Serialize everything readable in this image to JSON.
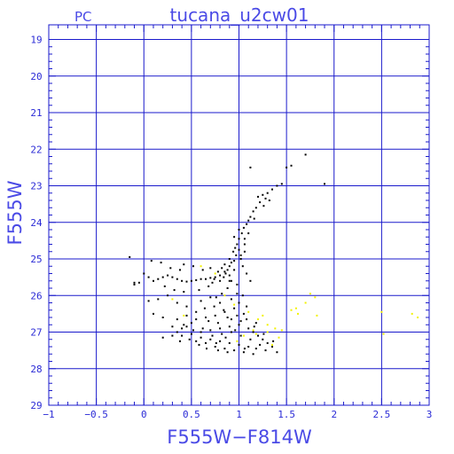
{
  "chart_data": {
    "type": "scatter",
    "title": "tucana_u2cw01",
    "corner_label": "PC",
    "xlabel": "F555W−F814W",
    "ylabel": "F555W",
    "xlim": [
      -1,
      3
    ],
    "ylim": [
      29,
      18.6
    ],
    "y_inverted": true,
    "grid": true,
    "x_major_ticks": [
      -1,
      -0.5,
      0,
      0.5,
      1,
      1.5,
      2,
      2.5,
      3
    ],
    "x_tick_labels": [
      "−1",
      "−0.5",
      "0",
      "0.5",
      "1",
      "1.5",
      "2",
      "2.5",
      "3"
    ],
    "y_major_ticks": [
      19,
      20,
      21,
      22,
      23,
      24,
      25,
      26,
      27,
      28,
      29
    ],
    "y_tick_labels": [
      "19",
      "20",
      "21",
      "22",
      "23",
      "24",
      "25",
      "26",
      "27",
      "28",
      "29"
    ],
    "colors": {
      "frame": "#1a1acc",
      "grid": "#1a1acc",
      "text": "#4a4ae6",
      "stars": "#000000",
      "highlight_stars": "#f2f200"
    },
    "series": [
      {
        "color_key": "stars",
        "points": [
          [
            1.7,
            22.15
          ],
          [
            1.55,
            22.45
          ],
          [
            1.5,
            22.5
          ],
          [
            1.12,
            22.5
          ],
          [
            1.9,
            22.95
          ],
          [
            1.45,
            22.95
          ],
          [
            1.4,
            23.0
          ],
          [
            1.35,
            23.1
          ],
          [
            1.3,
            23.2
          ],
          [
            1.25,
            23.25
          ],
          [
            1.2,
            23.3
          ],
          [
            1.28,
            23.35
          ],
          [
            1.22,
            23.45
          ],
          [
            1.18,
            23.6
          ],
          [
            1.15,
            23.7
          ],
          [
            1.12,
            23.85
          ],
          [
            1.1,
            23.95
          ],
          [
            1.08,
            24.05
          ],
          [
            1.05,
            24.15
          ],
          [
            1.03,
            24.3
          ],
          [
            1.0,
            24.45
          ],
          [
            0.98,
            24.6
          ],
          [
            1.0,
            24.75
          ],
          [
            0.97,
            24.9
          ],
          [
            0.95,
            25.05
          ],
          [
            1.02,
            24.9
          ],
          [
            1.06,
            24.6
          ],
          [
            1.1,
            24.3
          ],
          [
            0.95,
            24.4
          ],
          [
            1.0,
            24.2
          ],
          [
            0.92,
            25.1
          ],
          [
            0.9,
            25.2
          ],
          [
            0.88,
            25.3
          ],
          [
            0.86,
            25.4
          ],
          [
            0.84,
            25.5
          ],
          [
            0.8,
            25.45
          ],
          [
            0.75,
            25.5
          ],
          [
            0.7,
            25.52
          ],
          [
            0.65,
            25.55
          ],
          [
            0.6,
            25.55
          ],
          [
            0.55,
            25.58
          ],
          [
            0.5,
            25.6
          ],
          [
            0.45,
            25.62
          ],
          [
            0.4,
            25.6
          ],
          [
            0.35,
            25.55
          ],
          [
            0.3,
            25.5
          ],
          [
            0.25,
            25.45
          ],
          [
            0.2,
            25.5
          ],
          [
            0.15,
            25.55
          ],
          [
            0.1,
            25.6
          ],
          [
            0.05,
            25.5
          ],
          [
            0.0,
            25.4
          ],
          [
            -0.05,
            25.65
          ],
          [
            -0.1,
            25.7
          ],
          [
            -0.15,
            24.95
          ],
          [
            0.08,
            25.05
          ],
          [
            0.18,
            25.1
          ],
          [
            0.28,
            25.25
          ],
          [
            0.38,
            25.3
          ],
          [
            0.95,
            25.3
          ],
          [
            0.9,
            25.45
          ],
          [
            0.85,
            25.35
          ],
          [
            0.82,
            25.25
          ],
          [
            0.78,
            25.35
          ],
          [
            0.92,
            25.6
          ],
          [
            0.98,
            25.7
          ],
          [
            0.88,
            25.8
          ],
          [
            0.82,
            25.95
          ],
          [
            0.76,
            26.05
          ],
          [
            0.92,
            26.1
          ],
          [
            1.0,
            26.2
          ],
          [
            0.95,
            26.35
          ],
          [
            0.85,
            26.45
          ],
          [
            0.75,
            26.55
          ],
          [
            0.65,
            26.6
          ],
          [
            0.55,
            26.65
          ],
          [
            0.5,
            26.75
          ],
          [
            0.45,
            26.85
          ],
          [
            0.4,
            26.9
          ],
          [
            0.35,
            27.0
          ],
          [
            0.4,
            27.1
          ],
          [
            0.5,
            27.05
          ],
          [
            0.6,
            27.0
          ],
          [
            0.7,
            26.95
          ],
          [
            0.8,
            26.9
          ],
          [
            0.9,
            26.85
          ],
          [
            1.0,
            26.8
          ],
          [
            1.1,
            26.9
          ],
          [
            1.15,
            27.0
          ],
          [
            1.2,
            27.1
          ],
          [
            1.25,
            27.2
          ],
          [
            1.3,
            27.3
          ],
          [
            1.35,
            27.4
          ],
          [
            1.4,
            27.55
          ],
          [
            1.28,
            27.5
          ],
          [
            1.18,
            27.45
          ],
          [
            1.1,
            27.4
          ],
          [
            1.0,
            27.35
          ],
          [
            0.9,
            27.3
          ],
          [
            0.8,
            27.25
          ],
          [
            0.7,
            27.2
          ],
          [
            0.6,
            27.15
          ],
          [
            0.55,
            27.25
          ],
          [
            0.65,
            27.3
          ],
          [
            0.75,
            27.4
          ],
          [
            0.85,
            27.45
          ],
          [
            0.95,
            27.5
          ],
          [
            1.05,
            27.55
          ],
          [
            1.15,
            27.6
          ],
          [
            1.22,
            27.35
          ],
          [
            1.12,
            27.2
          ],
          [
            1.02,
            27.1
          ],
          [
            0.92,
            27.0
          ],
          [
            0.82,
            27.05
          ],
          [
            0.72,
            27.1
          ],
          [
            0.62,
            26.9
          ],
          [
            0.52,
            26.95
          ],
          [
            0.42,
            26.8
          ],
          [
            0.68,
            26.7
          ],
          [
            0.78,
            26.75
          ],
          [
            0.88,
            26.6
          ],
          [
            0.98,
            26.55
          ],
          [
            1.08,
            26.65
          ],
          [
            1.18,
            26.75
          ],
          [
            0.3,
            27.1
          ],
          [
            0.2,
            26.6
          ],
          [
            0.1,
            26.5
          ],
          [
            0.15,
            26.1
          ],
          [
            0.25,
            26.0
          ],
          [
            0.35,
            26.2
          ],
          [
            0.45,
            26.3
          ],
          [
            0.2,
            27.15
          ],
          [
            0.05,
            26.15
          ],
          [
            -0.1,
            25.65
          ],
          [
            0.22,
            25.75
          ],
          [
            0.32,
            25.85
          ],
          [
            0.42,
            25.9
          ],
          [
            0.58,
            25.85
          ],
          [
            0.68,
            25.75
          ],
          [
            0.72,
            25.65
          ],
          [
            0.62,
            25.3
          ],
          [
            0.52,
            25.2
          ],
          [
            0.42,
            25.15
          ],
          [
            0.98,
            25.95
          ],
          [
            1.04,
            26.0
          ],
          [
            1.08,
            26.3
          ],
          [
            1.05,
            26.5
          ],
          [
            1.02,
            26.7
          ],
          [
            0.96,
            26.95
          ],
          [
            0.86,
            27.15
          ],
          [
            0.76,
            27.3
          ],
          [
            0.66,
            27.45
          ],
          [
            0.58,
            27.35
          ],
          [
            1.12,
            25.6
          ],
          [
            1.08,
            25.4
          ],
          [
            1.04,
            25.2
          ],
          [
            1.02,
            25.0
          ],
          [
            1.06,
            24.8
          ],
          [
            0.94,
            24.8
          ],
          [
            0.9,
            25.0
          ],
          [
            0.85,
            25.15
          ],
          [
            0.7,
            25.25
          ],
          [
            0.92,
            26.65
          ],
          [
            0.84,
            26.4
          ],
          [
            0.74,
            26.3
          ],
          [
            0.64,
            26.35
          ],
          [
            0.8,
            26.2
          ],
          [
            0.7,
            26.05
          ],
          [
            0.6,
            26.15
          ],
          [
            0.55,
            26.45
          ],
          [
            0.45,
            26.55
          ],
          [
            0.35,
            26.65
          ],
          [
            1.26,
            27.05
          ],
          [
            1.16,
            26.85
          ],
          [
            1.36,
            27.25
          ],
          [
            0.48,
            27.2
          ],
          [
            0.38,
            27.25
          ],
          [
            0.3,
            26.85
          ],
          [
            0.88,
            27.55
          ],
          [
            0.78,
            27.5
          ],
          [
            1.06,
            27.45
          ],
          [
            1.32,
            23.4
          ],
          [
            1.26,
            23.55
          ],
          [
            1.16,
            23.9
          ],
          [
            1.06,
            24.45
          ],
          [
            0.96,
            24.7
          ],
          [
            0.9,
            25.6
          ],
          [
            0.8,
            25.6
          ],
          [
            0.74,
            25.55
          ]
        ]
      },
      {
        "color_key": "highlight_stars",
        "points": [
          [
            1.55,
            26.4
          ],
          [
            1.6,
            26.35
          ],
          [
            1.62,
            26.5
          ],
          [
            1.7,
            26.2
          ],
          [
            1.75,
            25.95
          ],
          [
            1.8,
            26.05
          ],
          [
            1.82,
            26.55
          ],
          [
            2.5,
            26.45
          ],
          [
            2.52,
            27.05
          ],
          [
            2.82,
            26.5
          ],
          [
            2.88,
            26.6
          ],
          [
            1.45,
            26.95
          ],
          [
            1.42,
            27.15
          ],
          [
            1.38,
            26.9
          ],
          [
            1.3,
            26.8
          ],
          [
            1.25,
            26.55
          ],
          [
            1.2,
            26.65
          ],
          [
            1.18,
            27.05
          ],
          [
            1.1,
            26.45
          ],
          [
            0.95,
            26.25
          ],
          [
            0.85,
            26.0
          ],
          [
            0.75,
            25.4
          ],
          [
            0.6,
            25.2
          ],
          [
            0.3,
            26.1
          ],
          [
            0.42,
            26.55
          ],
          [
            0.98,
            27.25
          ],
          [
            1.05,
            27.1
          ],
          [
            1.3,
            27.0
          ],
          [
            1.15,
            26.95
          ],
          [
            1.35,
            27.35
          ]
        ]
      }
    ]
  }
}
